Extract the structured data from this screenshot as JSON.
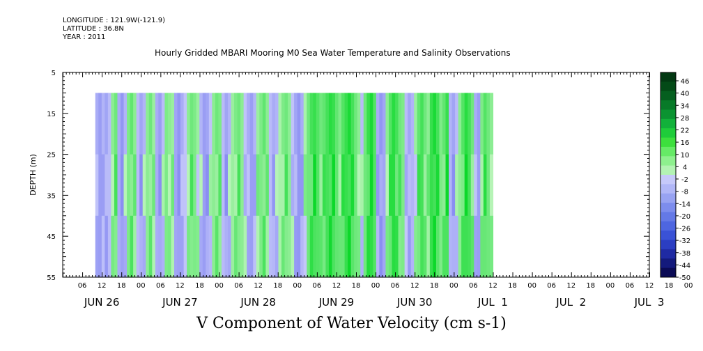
{
  "header": {
    "longitude": "LONGITUDE : 121.9W(-121.9)",
    "latitude": "LATITUDE : 36.8N",
    "year": "YEAR : 2011"
  },
  "chart_data": {
    "type": "heatmap",
    "title": "Hourly Gridded MBARI Mooring M0 Sea Water Temperature and Salinity Observations",
    "xlabel": "",
    "ylabel": "DEPTH (m)",
    "variable_label": "V Component of Water Velocity (cm s-1)",
    "x_range_hours": [
      0,
      180
    ],
    "data_x_range_hours": [
      10,
      132
    ],
    "hour_tick_labels": [
      "06",
      "12",
      "18",
      "00",
      "06",
      "12",
      "18",
      "00",
      "06",
      "12",
      "18",
      "00",
      "06",
      "12",
      "18",
      "00",
      "06",
      "12",
      "18",
      "00",
      "06",
      "12",
      "18",
      "00",
      "06",
      "12",
      "18",
      "00",
      "06",
      "12",
      "18",
      "00"
    ],
    "date_labels": [
      {
        "label": "JUN 26",
        "hour": 12
      },
      {
        "label": "JUN 27",
        "hour": 36
      },
      {
        "label": "JUN 28",
        "hour": 60
      },
      {
        "label": "JUN 29",
        "hour": 84
      },
      {
        "label": "JUN 30",
        "hour": 108
      },
      {
        "label": "JUL  1",
        "hour": 132
      },
      {
        "label": "JUL  2",
        "hour": 156
      },
      {
        "label": "JUL  3",
        "hour": 180
      }
    ],
    "y_ticks": [
      5,
      15,
      25,
      35,
      45,
      55
    ],
    "ylim": [
      5,
      55
    ],
    "data_depth_range": [
      10,
      55
    ],
    "colorbar_levels": [
      -50,
      -44,
      -38,
      -32,
      -26,
      -20,
      -14,
      -8,
      -2,
      4,
      10,
      16,
      22,
      28,
      34,
      40,
      46
    ],
    "colorbar_colors": [
      "#0b0b55",
      "#141a7c",
      "#1f2aa3",
      "#2b3ec2",
      "#3a52d6",
      "#4e66e0",
      "#6479e6",
      "#7d8ded",
      "#98a3f2",
      "#b1b7f7",
      "#c6c9fa",
      "#b3f3b3",
      "#8ef08e",
      "#66ea66",
      "#3ddf3d",
      "#1fcc3a",
      "#12b13a",
      "#0b9331",
      "#087a28",
      "#055f1f",
      "#034a17",
      "#023812"
    ],
    "column_values": [
      -8,
      -12,
      -6,
      -10,
      -4,
      6,
      10,
      -8,
      -14,
      -6,
      8,
      12,
      6,
      -4,
      -10,
      -6,
      6,
      10,
      4,
      -8,
      -12,
      -4,
      8,
      6,
      4,
      -10,
      -14,
      -8,
      -2,
      6,
      10,
      8,
      4,
      -6,
      -12,
      -10,
      -2,
      6,
      10,
      8,
      -4,
      -10,
      -6,
      4,
      8,
      10,
      6,
      -2,
      -8,
      -12,
      -6,
      4,
      8,
      12,
      6,
      -4,
      -8,
      -6,
      2,
      8,
      10,
      6,
      -2,
      -10,
      -14,
      -8,
      2,
      10,
      16,
      18,
      14,
      10,
      12,
      16,
      20,
      18,
      12,
      8,
      14,
      18,
      22,
      16,
      10,
      6,
      -4,
      10,
      18,
      22,
      14,
      -8,
      -14,
      -10,
      6,
      14,
      20,
      16,
      10,
      8,
      -4,
      -10,
      -6,
      4,
      12,
      16,
      10,
      6,
      18,
      22,
      16,
      8,
      12,
      18,
      -6,
      -10,
      -4,
      6,
      14,
      20,
      16,
      10,
      -8,
      -12,
      8,
      14,
      10,
      6
    ]
  },
  "colorbar_label_values": [
    "46",
    "40",
    "34",
    "28",
    "22",
    "16",
    "10",
    "4",
    "-2",
    "-8",
    "-14",
    "-20",
    "-26",
    "-32",
    "-38",
    "-44",
    "-50"
  ]
}
